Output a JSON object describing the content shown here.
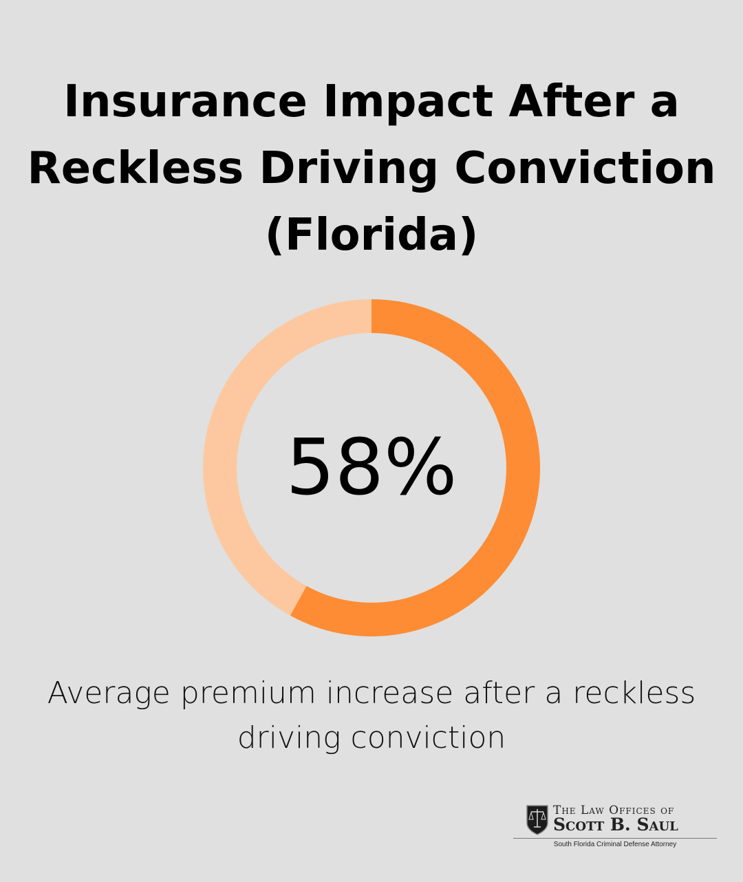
{
  "chart_data": {
    "type": "pie",
    "title": "Insurance Impact After a Reckless Driving Conviction (Florida)",
    "values": [
      58,
      42
    ],
    "center_label": "58%",
    "caption": "Average premium increase after a reckless driving conviction",
    "colors": {
      "value": "#fd8c35",
      "remainder": "#fdc89f",
      "background": "#dfe0df"
    }
  },
  "logo": {
    "line1": "The Law Offices of",
    "line2": "Scott B. Saul",
    "tagline": "South Florida Criminal Defense Attorney",
    "icon": "scales-of-justice-shield-icon"
  }
}
